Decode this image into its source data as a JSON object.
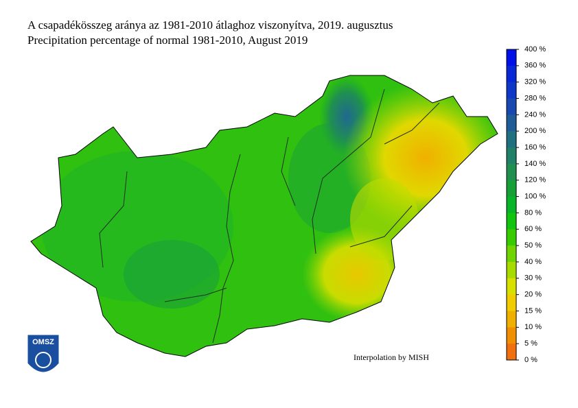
{
  "header": {
    "title": "A csapadékösszeg aránya az 1981-2010 átlaghoz viszonyítva, 2019. augusztus",
    "subtitle": "Precipitation percentage of normal 1981-2010, August 2019"
  },
  "legend": {
    "labels": [
      "400 %",
      "360 %",
      "320 %",
      "280 %",
      "240 %",
      "200 %",
      "160 %",
      "140 %",
      "120 %",
      "100 %",
      "80 %",
      "60 %",
      "50 %",
      "40 %",
      "30 %",
      "20 %",
      "15 %",
      "10 %",
      "5 %",
      "0 %"
    ],
    "colors": [
      "#0010e8",
      "#0828d8",
      "#1038c8",
      "#1848b0",
      "#205c98",
      "#207080",
      "#208068",
      "#209050",
      "#18a038",
      "#08b428",
      "#10c410",
      "#38cc00",
      "#70d400",
      "#a8dc00",
      "#d8e000",
      "#f0cc00",
      "#f0b000",
      "#f09000",
      "#f07010"
    ]
  },
  "credit": "Interpolation by MISH",
  "logo": {
    "text": "OMSZ"
  }
}
